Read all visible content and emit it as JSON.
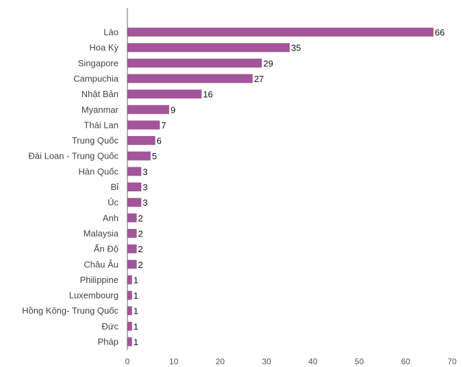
{
  "chart_data": {
    "type": "bar",
    "orientation": "horizontal",
    "title": "",
    "xlabel": "",
    "ylabel": "",
    "categories": [
      "Lào",
      "Hoa Kỳ",
      "Singapore",
      "Campuchia",
      "Nhật Bản",
      "Myanmar",
      "Thái Lan",
      "Trung Quốc",
      "Đài Loan - Trung Quốc",
      "Hàn Quốc",
      "Bỉ",
      "Úc",
      "Anh",
      "Malaysia",
      "Ấn Độ",
      "Châu Âu",
      "Philippine",
      "Luxembourg",
      "Hồng Kông- Trung Quốc",
      "Đức",
      "Pháp"
    ],
    "values": [
      66,
      35,
      29,
      27,
      16,
      9,
      7,
      6,
      5,
      3,
      3,
      3,
      2,
      2,
      2,
      2,
      1,
      1,
      1,
      1,
      1
    ],
    "xlim": [
      0,
      70
    ],
    "xticks": [
      0,
      10,
      20,
      30,
      40,
      50,
      60,
      70
    ],
    "grid": false,
    "bar_color": "#a3559a",
    "axis_color": "#666666"
  }
}
